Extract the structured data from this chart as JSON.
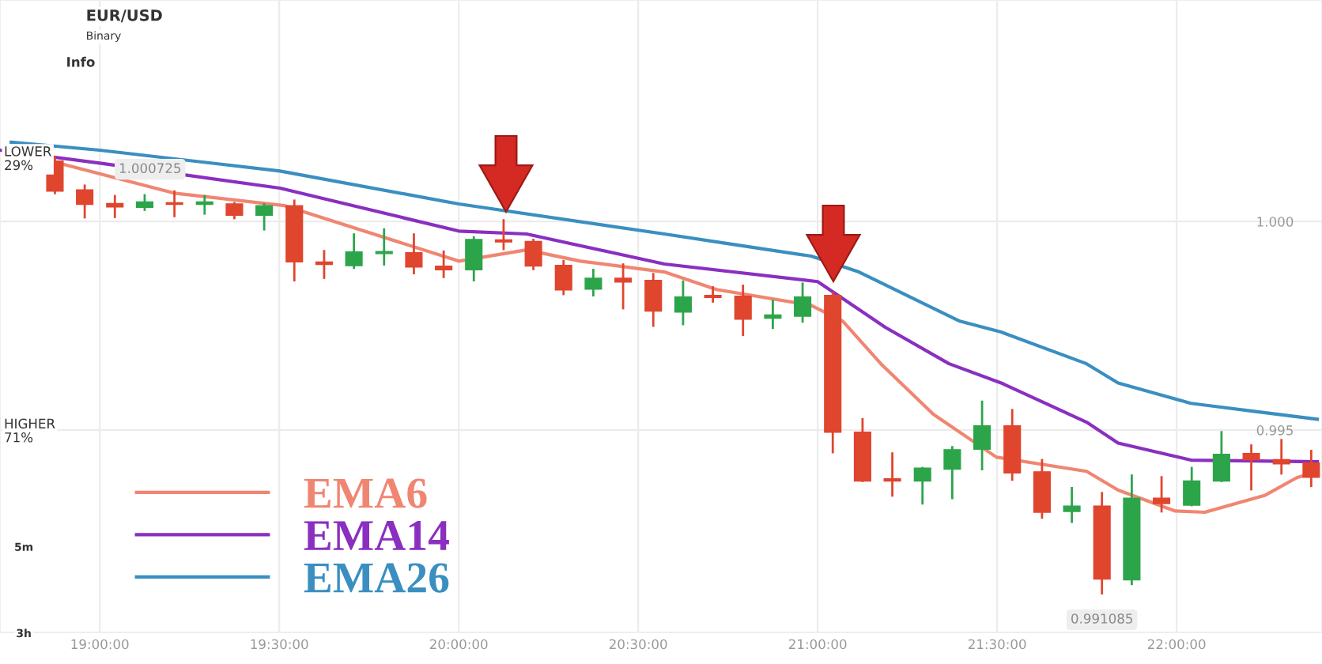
{
  "chart_data": {
    "type": "candlestick",
    "x": [
      18.875,
      18.958,
      19.042,
      19.125,
      19.208,
      19.292,
      19.375,
      19.458,
      19.542,
      19.625,
      19.708,
      19.792,
      19.875,
      19.958,
      20.042,
      20.125,
      20.208,
      20.292,
      20.375,
      20.458,
      20.542,
      20.625,
      20.708,
      20.792,
      20.875,
      20.958,
      21.042,
      21.125,
      21.208,
      21.292,
      21.375,
      21.458,
      21.542,
      21.625,
      21.708,
      21.792,
      21.875,
      21.958,
      22.042,
      22.125,
      22.208,
      22.292,
      22.375
    ],
    "ohlc": [
      [
        1.00145,
        1.00155,
        1.00068,
        1.00073
      ],
      [
        1.00076,
        1.00086,
        1.0001,
        1.00041
      ],
      [
        1.00043,
        1.00061,
        1.00011,
        1.00035
      ],
      [
        1.00034,
        1.00063,
        1.00028,
        1.00047
      ],
      [
        1.00045,
        1.00072,
        1.00013,
        1.00041
      ],
      [
        1.00041,
        1.00061,
        1.00019,
        1.00047
      ],
      [
        1.00042,
        1.00044,
        1.00008,
        1.00015
      ],
      [
        1.00015,
        1.00041,
        0.99981,
        1.00038
      ],
      [
        1.00038,
        1.0005,
        0.99859,
        0.99903
      ],
      [
        0.99903,
        0.99929,
        0.99865,
        0.99897
      ],
      [
        0.99894,
        0.99969,
        0.99889,
        0.99927
      ],
      [
        0.99923,
        0.99981,
        0.99897,
        0.99928
      ],
      [
        0.99925,
        0.99969,
        0.99876,
        0.99891
      ],
      [
        0.99893,
        0.99928,
        0.99867,
        0.99884
      ],
      [
        0.99884,
        0.99962,
        0.99859,
        0.99957
      ],
      [
        0.99956,
        1.00003,
        0.99934,
        0.99951
      ],
      [
        0.99952,
        0.99956,
        0.99886,
        0.99893
      ],
      [
        0.99895,
        0.99905,
        0.99826,
        0.99836
      ],
      [
        0.99838,
        0.99884,
        0.99823,
        0.99864
      ],
      [
        0.99864,
        0.99897,
        0.99792,
        0.99855
      ],
      [
        0.99859,
        0.99874,
        0.9975,
        0.99785
      ],
      [
        0.99783,
        0.99856,
        0.99754,
        0.99819
      ],
      [
        0.99823,
        0.99842,
        0.99808,
        0.99818
      ],
      [
        0.99821,
        0.99846,
        0.99728,
        0.99766
      ],
      [
        0.99768,
        0.9981,
        0.99745,
        0.99776
      ],
      [
        0.99773,
        0.99851,
        0.9976,
        0.99819
      ],
      [
        0.99823,
        0.99829,
        0.99447,
        0.99495
      ],
      [
        0.99495,
        0.99526,
        0.99378,
        0.99378
      ],
      [
        0.99383,
        0.99444,
        0.99343,
        0.99378
      ],
      [
        0.99378,
        0.99409,
        0.99324,
        0.99409
      ],
      [
        0.99406,
        0.99459,
        0.99337,
        0.99453
      ],
      [
        0.99454,
        0.99568,
        0.99406,
        0.9951
      ],
      [
        0.9951,
        0.99548,
        0.99381,
        0.99397
      ],
      [
        0.994,
        0.99428,
        0.9929,
        0.99303
      ],
      [
        0.99305,
        0.99361,
        0.9928,
        0.99318
      ],
      [
        0.99318,
        0.99349,
        0.991085,
        0.99143
      ],
      [
        0.99141,
        0.99391,
        0.99131,
        0.99337
      ],
      [
        0.99337,
        0.99387,
        0.99305,
        0.99324
      ],
      [
        0.9932,
        0.99409,
        0.9932,
        0.99378
      ],
      [
        0.99378,
        0.99495,
        0.99378,
        0.99442
      ],
      [
        0.99444,
        0.99463,
        0.99358,
        0.99429
      ],
      [
        0.99429,
        0.99476,
        0.99396,
        0.99419
      ],
      [
        0.99421,
        0.9945,
        0.99366,
        0.99387
      ]
    ],
    "colors": [
      "#e0452e",
      "#e0452e",
      "#e0452e",
      "#2ca54a",
      "#e0452e",
      "#2ca54a",
      "#e0452e",
      "#2ca54a",
      "#e0452e",
      "#e0452e",
      "#2ca54a",
      "#2ca54a",
      "#e0452e",
      "#e0452e",
      "#2ca54a",
      "#e0452e",
      "#e0452e",
      "#e0452e",
      "#2ca54a",
      "#e0452e",
      "#e0452e",
      "#2ca54a",
      "#e0452e",
      "#e0452e",
      "#2ca54a",
      "#2ca54a",
      "#e0452e",
      "#e0452e",
      "#e0452e",
      "#2ca54a",
      "#2ca54a",
      "#2ca54a",
      "#e0452e",
      "#e0452e",
      "#2ca54a",
      "#e0452e",
      "#2ca54a",
      "#e0452e",
      "#2ca54a",
      "#2ca54a",
      "#e0452e",
      "#e0452e",
      "#e0452e"
    ],
    "series": [
      {
        "name": "EMA6",
        "type": "line",
        "color": "#f08672",
        "x": [
          18.868,
          19.207,
          19.515,
          20.0,
          20.189,
          20.339,
          20.573,
          20.718,
          20.982,
          21.07,
          21.176,
          21.322,
          21.498,
          21.749,
          21.837,
          21.996,
          22.079,
          22.247,
          22.335,
          22.392
        ],
        "values": [
          1.00144,
          1.00068,
          1.00038,
          0.99905,
          0.99932,
          0.99905,
          0.99879,
          0.99837,
          0.99799,
          0.99761,
          0.99659,
          0.99538,
          0.99435,
          0.99401,
          0.99356,
          0.99306,
          0.99303,
          0.99344,
          0.99386,
          0.99401
        ]
      },
      {
        "name": "EMA14",
        "type": "line",
        "color": "#8a2fc0",
        "x": [
          18.722,
          19.0,
          19.502,
          20.0,
          20.189,
          20.573,
          21.0,
          21.189,
          21.366,
          21.511,
          21.749,
          21.837,
          22.04,
          22.392
        ],
        "values": [
          1.00171,
          1.0014,
          1.0008,
          0.99977,
          0.9997,
          0.99898,
          0.99856,
          0.99746,
          0.99659,
          0.99613,
          0.99519,
          0.99469,
          0.99428,
          0.99424
        ]
      },
      {
        "name": "EMA26",
        "type": "line",
        "color": "#3a8fc0",
        "x": [
          18.753,
          19.0,
          19.502,
          20.0,
          20.573,
          20.749,
          20.982,
          21.115,
          21.396,
          21.511,
          21.749,
          21.837,
          22.04,
          22.216,
          22.392
        ],
        "values": [
          1.0019,
          1.00171,
          1.00121,
          1.00042,
          0.9997,
          0.99947,
          0.99917,
          0.99879,
          0.99761,
          0.99735,
          0.99659,
          0.99613,
          0.99564,
          0.99545,
          0.99526
        ]
      }
    ],
    "xlim": [
      18.722,
      22.405
    ],
    "xticks": [
      {
        "value": 19,
        "label": "19:00:00"
      },
      {
        "value": 19.5,
        "label": "19:30:00"
      },
      {
        "value": 20,
        "label": "20:00:00"
      },
      {
        "value": 20.5,
        "label": "20:30:00"
      },
      {
        "value": 21,
        "label": "21:00:00"
      },
      {
        "value": 21.5,
        "label": "21:30:00"
      },
      {
        "value": 22,
        "label": "22:00:00"
      }
    ],
    "ylim": [
      0.99015,
      1.00531
    ],
    "yticks": [
      {
        "value": 0.995,
        "label": "0.995"
      },
      {
        "value": 1.0,
        "label": "1.000"
      }
    ],
    "grid": true,
    "legend": "bottom left",
    "annotations": [
      "EUR/USD",
      "Binary",
      "Info",
      "LOWER\n29%",
      "HIGHER\n71%",
      "5m",
      "3h",
      {
        "text": "1.000725",
        "x": 19.14,
        "y": 1.000725
      },
      {
        "text": "0.991085",
        "x": 21.792,
        "y": 0.991085
      }
    ]
  }
}
